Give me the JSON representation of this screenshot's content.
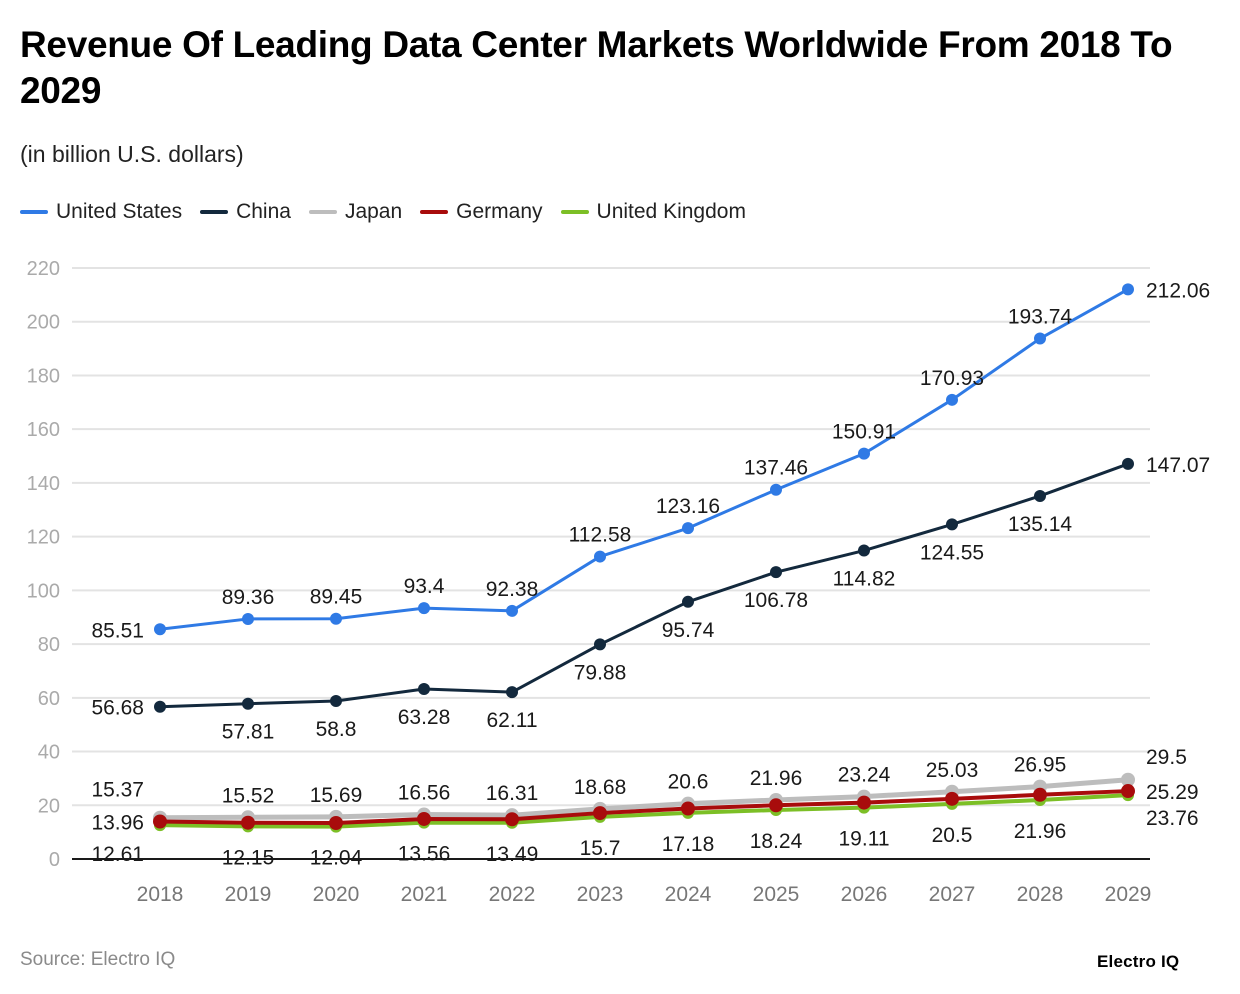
{
  "header": {
    "title": "Revenue Of Leading Data Center Markets Worldwide From 2018 To 2029",
    "subtitle": "(in billion U.S. dollars)"
  },
  "footer": {
    "source": "Source: Electro IQ",
    "brand": "Electro IQ"
  },
  "chart_data": {
    "type": "line",
    "title": "Revenue Of Leading Data Center Markets Worldwide From 2018 To 2029",
    "subtitle": "(in billion U.S. dollars)",
    "xlabel": "",
    "ylabel": "",
    "x": [
      "2018",
      "2019",
      "2020",
      "2021",
      "2022",
      "2023",
      "2024",
      "2025",
      "2026",
      "2027",
      "2028",
      "2029"
    ],
    "ylim": [
      0,
      220
    ],
    "yticks": [
      0,
      20,
      40,
      60,
      80,
      100,
      120,
      140,
      160,
      180,
      200,
      220
    ],
    "grid": true,
    "legend_position": "top-left",
    "series": [
      {
        "name": "United States",
        "color": "#2f7ae5",
        "values": [
          85.51,
          89.36,
          89.45,
          93.4,
          92.38,
          112.58,
          123.16,
          137.46,
          150.91,
          170.93,
          193.74,
          212.06
        ],
        "labels": [
          "85.51",
          "89.36",
          "89.45",
          "93.4",
          "92.38",
          "112.58",
          "123.16",
          "137.46",
          "150.91",
          "170.93",
          "193.74",
          "212.06"
        ]
      },
      {
        "name": "China",
        "color": "#13293d",
        "values": [
          56.68,
          57.81,
          58.8,
          63.28,
          62.11,
          79.88,
          95.74,
          106.78,
          114.82,
          124.55,
          135.14,
          147.07
        ],
        "labels": [
          "56.68",
          "57.81",
          "58.8",
          "63.28",
          "62.11",
          "79.88",
          "95.74",
          "106.78",
          "114.82",
          "124.55",
          "135.14",
          "147.07"
        ]
      },
      {
        "name": "Japan",
        "color": "#bdbdbd",
        "values": [
          15.37,
          15.52,
          15.69,
          16.56,
          16.31,
          18.68,
          20.6,
          21.96,
          23.24,
          25.03,
          26.95,
          29.5
        ],
        "labels": [
          "15.37",
          "15.52",
          "15.69",
          "16.56",
          "16.31",
          "18.68",
          "20.6",
          "21.96",
          "23.24",
          "25.03",
          "26.95",
          "29.5"
        ]
      },
      {
        "name": "Germany",
        "color": "#a80c0c",
        "values": [
          13.96,
          13.5,
          13.4,
          14.9,
          14.8,
          17.1,
          18.8,
          20.0,
          21.0,
          22.4,
          23.9,
          25.29
        ],
        "labels": [
          "13.96",
          "",
          "",
          "",
          "",
          "",
          "",
          "",
          "",
          "",
          "",
          "25.29"
        ]
      },
      {
        "name": "United Kingdom",
        "color": "#7cbf26",
        "values": [
          12.61,
          12.15,
          12.04,
          13.56,
          13.49,
          15.7,
          17.18,
          18.24,
          19.11,
          20.5,
          21.96,
          23.76
        ],
        "labels": [
          "12.61",
          "12.15",
          "12.04",
          "13.56",
          "13.49",
          "15.7",
          "17.18",
          "18.24",
          "19.11",
          "20.5",
          "21.96",
          "23.76"
        ]
      }
    ]
  }
}
